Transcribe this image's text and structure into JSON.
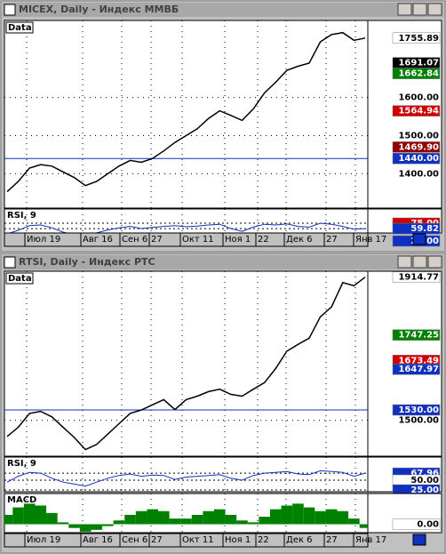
{
  "windows": [
    {
      "title": "MICEX, Daily - Индекс ММВБ",
      "price": {
        "label": "Data",
        "ylim": [
          1310,
          1802
        ],
        "ticks": [
          {
            "value": 1600,
            "label": "1600.00"
          },
          {
            "value": 1500,
            "label": "1500.00"
          },
          {
            "value": 1400,
            "label": "1400.00"
          }
        ],
        "markers": [
          {
            "value": 1755.89,
            "color": "#ffffff"
          },
          {
            "value": 1691.07,
            "color": "#000000"
          },
          {
            "value": 1662.84,
            "color": "#008000"
          },
          {
            "value": 1564.94,
            "color": "#d00000"
          },
          {
            "value": 1469.9,
            "label": "1469.90",
            "color": "#900000"
          },
          {
            "value": 1440,
            "label": "1440.00",
            "color": "#1030c0",
            "hline": true
          }
        ],
        "close": [
          1353,
          1380,
          1415,
          1424,
          1420,
          1405,
          1390,
          1369,
          1380,
          1400,
          1420,
          1435,
          1430,
          1440,
          1460,
          1482,
          1500,
          1518,
          1545,
          1565,
          1553,
          1540,
          1570,
          1612,
          1640,
          1671,
          1682,
          1690,
          1746,
          1765,
          1770,
          1750,
          1755.89
        ]
      },
      "rsi": {
        "label": "RSI, 9",
        "ylim": [
          0,
          100
        ],
        "markers": [
          {
            "value": 75,
            "label": "75.00",
            "color": "#d00000"
          },
          {
            "value": 59.82,
            "color": "#1030c0"
          },
          {
            "value": 25,
            "label": "25.00",
            "color": "#1030c0"
          }
        ],
        "values": [
          45,
          55,
          68,
          70,
          62,
          50,
          42,
          38,
          48,
          56,
          62,
          66,
          60,
          63,
          66,
          68,
          65,
          67,
          70,
          72,
          60,
          52,
          64,
          72,
          70,
          73,
          66,
          64,
          75,
          72,
          66,
          58,
          59.82
        ]
      },
      "x_labels": [
        "Июл 19",
        "Авг 16",
        "Сен 6",
        "27",
        "Окт 11",
        "Ноя 1",
        "22",
        "Дек 6",
        "27",
        "Янв 17"
      ]
    },
    {
      "title": "RTSI, Daily - Индекс РТС",
      "price": {
        "label": "Data",
        "ylim": [
          1396,
          1932
        ],
        "ticks": [
          {
            "value": 1500,
            "label": "1500.00"
          }
        ],
        "markers": [
          {
            "value": 1914.77,
            "color": "#ffffff"
          },
          {
            "value": 1747.25,
            "color": "#008000"
          },
          {
            "value": 1673.49,
            "color": "#d00000"
          },
          {
            "value": 1647.97,
            "color": "#1030c0"
          },
          {
            "value": 1530,
            "label": "1530.00",
            "color": "#1030c0",
            "hline": true
          }
        ],
        "close": [
          1453,
          1480,
          1520,
          1526,
          1510,
          1480,
          1450,
          1415,
          1430,
          1460,
          1490,
          1520,
          1530,
          1545,
          1560,
          1531,
          1560,
          1570,
          1583,
          1590,
          1575,
          1570,
          1590,
          1609,
          1650,
          1700,
          1720,
          1738,
          1800,
          1829,
          1899,
          1890,
          1914.77
        ]
      },
      "rsi": {
        "label": "RSI, 9",
        "ylim": [
          0,
          100
        ],
        "markers": [
          {
            "value": 67.96,
            "color": "#1030c0"
          },
          {
            "value": 50,
            "label": "50.00",
            "color": "#ffffff"
          },
          {
            "value": 25,
            "label": "25.00",
            "color": "#1030c0"
          }
        ],
        "values": [
          45,
          60,
          70,
          68,
          55,
          45,
          40,
          35,
          45,
          55,
          62,
          66,
          60,
          63,
          62,
          52,
          58,
          60,
          62,
          64,
          55,
          50,
          62,
          68,
          70,
          72,
          66,
          64,
          74,
          72,
          70,
          60,
          67.96
        ]
      },
      "macd": {
        "label": "MACD",
        "ylim": [
          -10,
          30
        ],
        "markers": [
          {
            "value": 0,
            "label": "0.00",
            "color": "#ffffff"
          }
        ],
        "values": [
          10,
          18,
          22,
          20,
          12,
          2,
          -4,
          -8,
          -6,
          -2,
          4,
          10,
          14,
          16,
          14,
          6,
          6,
          10,
          14,
          16,
          10,
          4,
          2,
          8,
          16,
          20,
          22,
          18,
          14,
          16,
          14,
          6,
          -4
        ]
      },
      "x_labels": [
        "Июл 19",
        "Авг 16",
        "Сен 6",
        "27",
        "Окт 11",
        "Ноя 1",
        "22",
        "Дек 6",
        "27",
        "Янв 17"
      ]
    }
  ]
}
